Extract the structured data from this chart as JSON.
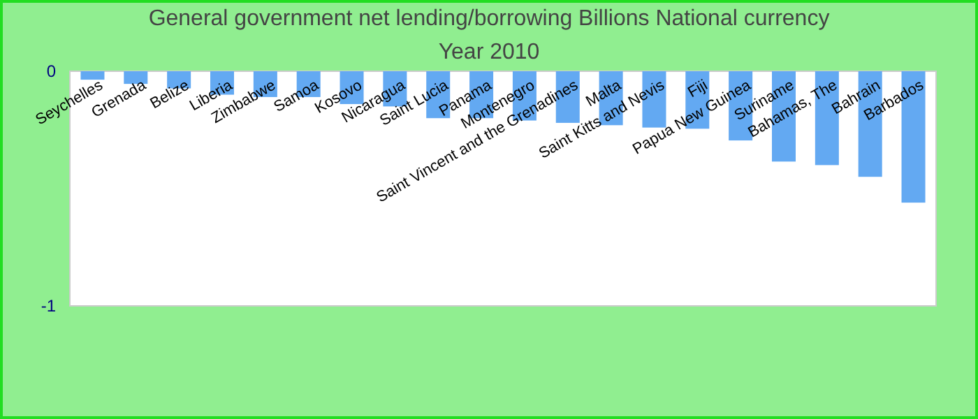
{
  "chart_data": {
    "type": "bar",
    "title": "General government net lending/borrowing Billions National currency",
    "subtitle": "Year 2010",
    "categories": [
      "Seychelles",
      "Grenada",
      "Belize",
      "Liberia",
      "Zimbabwe",
      "Samoa",
      "Kosovo",
      "Nicaragua",
      "Saint Lucia",
      "Panama",
      "Montenegro",
      "Saint Vincent and the Grenadines",
      "Malta",
      "Saint Kitts and Nevis",
      "Fiji",
      "Papua New Guinea",
      "Suriname",
      "Bahamas, The",
      "Bahrain",
      "Barbados"
    ],
    "values": [
      -0.036,
      -0.054,
      -0.073,
      -0.1,
      -0.11,
      -0.11,
      -0.14,
      -0.15,
      -0.2,
      -0.2,
      -0.21,
      -0.22,
      -0.23,
      -0.24,
      -0.245,
      -0.295,
      -0.385,
      -0.4,
      -0.45,
      -0.56
    ],
    "color": "#63a9f2",
    "ylim": [
      -1,
      0
    ],
    "yticks": [
      -1,
      0
    ],
    "grid": false
  }
}
